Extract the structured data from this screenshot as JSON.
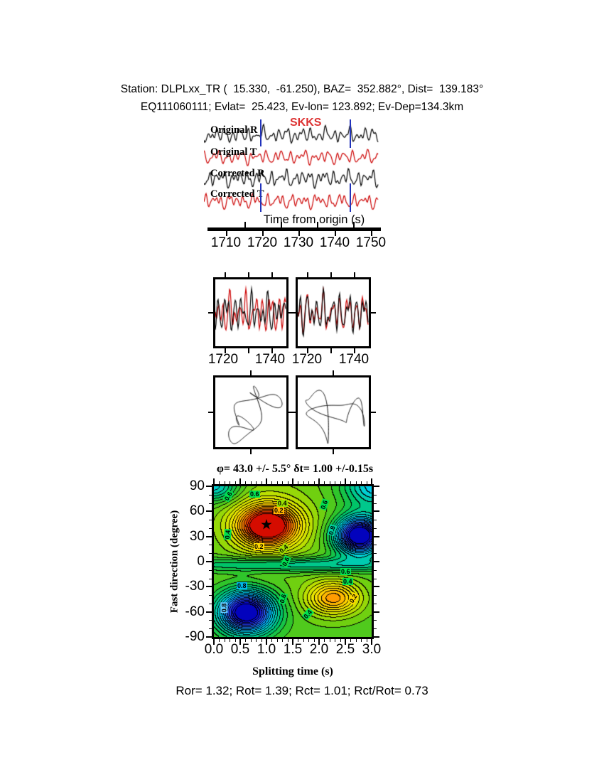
{
  "header": {
    "line1": "Station: DLPLxx_TR (  15.330,  -61.250), BAZ=  352.882°, Dist=  139.183°",
    "line2": "EQ111060111; Evlat=  25.423, Ev-lon= 123.892; Ev-Dep=134.3km"
  },
  "seismogram": {
    "phase_label": "SKKS",
    "phase_color": "#dd3333",
    "axis_label": "Time from origin (s)",
    "tick_labels": [
      "1710",
      "1720",
      "1730",
      "1740",
      "1750"
    ],
    "window_color": "#2233bb",
    "window_times": [
      1720.0,
      1744.6
    ],
    "traces": [
      {
        "label": "Original R",
        "color": "#000000",
        "seed": 11,
        "amp": 15,
        "y": 190
      },
      {
        "label": "Original T",
        "color": "#cc0000",
        "seed": 22,
        "amp": 12,
        "y": 221
      },
      {
        "label": "Corrected R",
        "color": "#000000",
        "seed": 33,
        "amp": 14,
        "y": 251
      },
      {
        "label": "Corrected T",
        "color": "#cc0000",
        "seed": 44,
        "amp": 12,
        "y": 283
      }
    ]
  },
  "wave_panels": {
    "tick_labels": [
      [
        "1720",
        "1740"
      ],
      [
        "1720",
        "1740"
      ]
    ],
    "series": [
      {
        "black_seed": 55,
        "red_seed": 56,
        "match": false
      },
      {
        "black_seed": 77,
        "red_seed": 78,
        "match": true
      }
    ],
    "colors": {
      "black": "#000000",
      "red": "#cc0000"
    }
  },
  "pm_panels": [
    {
      "seed": 91,
      "rotated": false
    },
    {
      "seed": 92,
      "rotated": true
    }
  ],
  "chart_data": {
    "type": "heatmap",
    "title": "φ= 43.0 +/- 5.5° δt= 1.00 +/-0.15s",
    "xlabel": "Splitting time (s)",
    "ylabel": "Fast direction (degree)",
    "xlim": [
      0,
      3
    ],
    "ylim": [
      -90,
      90
    ],
    "x_ticks": [
      "0.0",
      "0.5",
      "1.0",
      "1.5",
      "2.0",
      "2.5",
      "3.0"
    ],
    "y_ticks": [
      "90",
      "60",
      "30",
      "0",
      "-30",
      "-60",
      "-90"
    ],
    "x_minor_step": 0.1,
    "y_minor_step": 10,
    "grid": false,
    "best_solution": {
      "fast_direction_deg": 43.0,
      "fast_direction_err_deg": 5.5,
      "delay_s": 1.0,
      "delay_err_s": 0.15,
      "glyph": "★"
    },
    "surface": {
      "base": 0.48,
      "levels": 30,
      "bumps": [
        {
          "x": 1.02,
          "sx": 0.55,
          "y": 43,
          "sy": 23,
          "a": -0.52
        },
        {
          "x": 1.05,
          "sx": 1.0,
          "y": 45,
          "sy": 55,
          "a": -0.1
        },
        {
          "x": 2.78,
          "sx": 0.45,
          "y": 31,
          "sy": 22,
          "a": 0.6
        },
        {
          "x": 0.62,
          "sx": 0.52,
          "y": -61,
          "sy": 25,
          "a": 0.58
        },
        {
          "x": 2.28,
          "sx": 0.5,
          "y": -44,
          "sy": 20,
          "a": -0.3
        },
        {
          "x": 1.5,
          "sx": 2.2,
          "y": -4,
          "sy": 9,
          "a": 0.17
        },
        {
          "x": 0.0,
          "sx": 0.45,
          "y": 90,
          "sy": 18,
          "a": 0.22
        },
        {
          "x": 3.1,
          "sx": 0.6,
          "y": 90,
          "sy": 25,
          "a": 0.25
        }
      ]
    },
    "colormap": [
      [
        0.0,
        "#cc0000"
      ],
      [
        0.06,
        "#ee2a00"
      ],
      [
        0.12,
        "#ff6600"
      ],
      [
        0.18,
        "#ff9900"
      ],
      [
        0.24,
        "#ffcc00"
      ],
      [
        0.31,
        "#f0e800"
      ],
      [
        0.38,
        "#c0e000"
      ],
      [
        0.45,
        "#70d010"
      ],
      [
        0.52,
        "#2cc42c"
      ],
      [
        0.58,
        "#00c464"
      ],
      [
        0.65,
        "#00cbb0"
      ],
      [
        0.71,
        "#00d2ee"
      ],
      [
        0.77,
        "#00a6ff"
      ],
      [
        0.83,
        "#2a6aff"
      ],
      [
        0.89,
        "#2233f0"
      ],
      [
        0.95,
        "#0a0ad8"
      ],
      [
        1.0,
        "#0000b0"
      ]
    ],
    "contour_labels": [
      {
        "v": "0.6",
        "l": 50,
        "t": 6,
        "r": 0,
        "bg": "#00e050"
      },
      {
        "v": "0.4",
        "l": 89,
        "t": 19,
        "r": 0,
        "bg": "#9ae000"
      },
      {
        "v": "0.2",
        "l": 84,
        "t": 29,
        "r": 0,
        "bg": "#ffb400"
      },
      {
        "v": "0.6",
        "l": 13,
        "t": 9,
        "r": -60,
        "bg": "#00e050"
      },
      {
        "v": "0.6",
        "l": 148,
        "t": 21,
        "r": -70,
        "bg": "#00e050"
      },
      {
        "v": "0.8",
        "l": 159,
        "t": 57,
        "r": -75,
        "bg": "#00d0a0"
      },
      {
        "v": "0.4",
        "l": 12,
        "t": 63,
        "r": -85,
        "bg": "#00e050"
      },
      {
        "v": "0.2",
        "l": 56,
        "t": 80,
        "r": 0,
        "bg": "#ffd800"
      },
      {
        "v": "0.4",
        "l": 91,
        "t": 83,
        "r": -40,
        "bg": "#a0e000"
      },
      {
        "v": "0.6",
        "l": 94,
        "t": 101,
        "r": -65,
        "bg": "#00e050"
      },
      {
        "v": "0.6",
        "l": 178,
        "t": 115,
        "r": 0,
        "bg": "#00e050"
      },
      {
        "v": "0.4",
        "l": 181,
        "t": 129,
        "r": 0,
        "bg": "#00e050"
      },
      {
        "v": "0.8",
        "l": 32,
        "t": 135,
        "r": 0,
        "bg": "#00b8e8"
      },
      {
        "v": "0.8",
        "l": 7,
        "t": 166,
        "r": -90,
        "bg": "#60c8ff"
      },
      {
        "v": "0.6",
        "l": 90,
        "t": 153,
        "r": -75,
        "bg": "#00e050"
      },
      {
        "v": "0.2",
        "l": 189,
        "t": 153,
        "r": -60,
        "bg": "#ffd800"
      },
      {
        "v": "0.4",
        "l": 125,
        "t": 175,
        "r": -50,
        "bg": "#00e050"
      }
    ]
  },
  "results_line": "Ror= 1.32; Rot= 1.39; Rct= 1.01; Rct/Rot= 0.73"
}
